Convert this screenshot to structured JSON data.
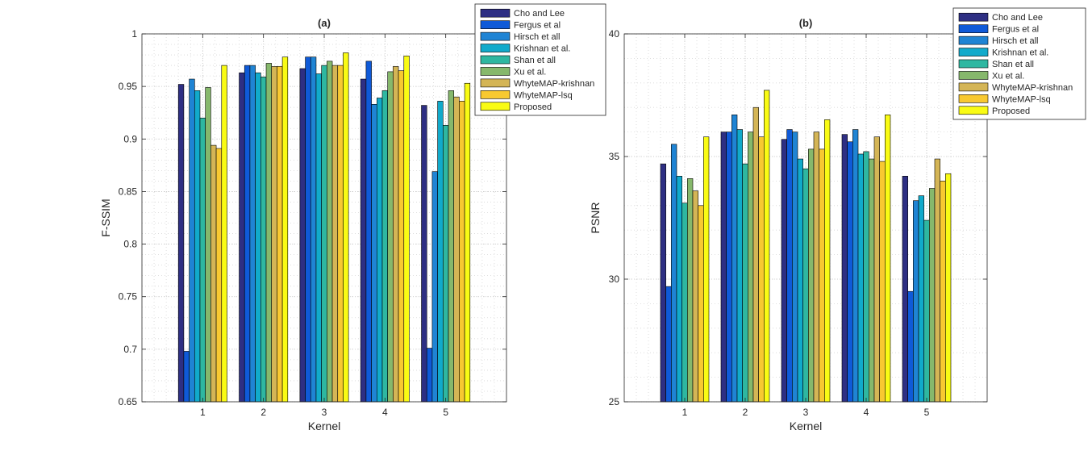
{
  "figure": {
    "background": "#ffffff"
  },
  "series_colors": [
    "#2e2f83",
    "#0f5ad8",
    "#1f84d4",
    "#11aacb",
    "#2eb7a1",
    "#86b86c",
    "#d4b556",
    "#f8c931",
    "#f9fb14"
  ],
  "chart_data": [
    {
      "type": "bar",
      "title": "(a)",
      "xlabel": "Kernel",
      "ylabel": "F-SSIM",
      "categories": [
        "1",
        "2",
        "3",
        "4",
        "5"
      ],
      "ylim": [
        0.65,
        1.0
      ],
      "xlim": [
        0,
        6
      ],
      "yticks": [
        0.65,
        0.7,
        0.75,
        0.8,
        0.85,
        0.9,
        0.95,
        1.0
      ],
      "ytick_labels": [
        "0.65",
        "0.7",
        "0.75",
        "0.8",
        "0.85",
        "0.9",
        "0.95",
        "1"
      ],
      "grid": true,
      "legend_position": "top-right",
      "series": [
        {
          "name": "Cho and Lee",
          "values": [
            0.952,
            0.963,
            0.967,
            0.957,
            0.932
          ]
        },
        {
          "name": "Fergus et al",
          "values": [
            0.698,
            0.97,
            0.978,
            0.974,
            0.701
          ]
        },
        {
          "name": "Hirsch et all",
          "values": [
            0.957,
            0.97,
            0.978,
            0.933,
            0.869
          ]
        },
        {
          "name": "Krishnan et al.",
          "values": [
            0.946,
            0.963,
            0.962,
            0.939,
            0.936
          ]
        },
        {
          "name": "Shan et all",
          "values": [
            0.92,
            0.959,
            0.97,
            0.946,
            0.913
          ]
        },
        {
          "name": "Xu et al.",
          "values": [
            0.949,
            0.972,
            0.974,
            0.964,
            0.946
          ]
        },
        {
          "name": "WhyteMAP-krishnan",
          "values": [
            0.894,
            0.969,
            0.97,
            0.969,
            0.94
          ]
        },
        {
          "name": "WhyteMAP-lsq",
          "values": [
            0.891,
            0.969,
            0.97,
            0.965,
            0.936
          ]
        },
        {
          "name": "Proposed",
          "values": [
            0.97,
            0.978,
            0.982,
            0.979,
            0.953
          ]
        }
      ]
    },
    {
      "type": "bar",
      "title": "(b)",
      "xlabel": "Kernel",
      "ylabel": "PSNR",
      "categories": [
        "1",
        "2",
        "3",
        "4",
        "5"
      ],
      "ylim": [
        25,
        40
      ],
      "xlim": [
        0,
        6
      ],
      "yticks": [
        25,
        30,
        35,
        40
      ],
      "ytick_labels": [
        "25",
        "30",
        "35",
        "40"
      ],
      "grid": true,
      "legend_position": "top-right",
      "series": [
        {
          "name": "Cho and Lee",
          "values": [
            34.7,
            36.0,
            35.7,
            35.9,
            34.2
          ]
        },
        {
          "name": "Fergus et al",
          "values": [
            29.7,
            36.0,
            36.1,
            35.6,
            29.5
          ]
        },
        {
          "name": "Hirsch et all",
          "values": [
            35.5,
            36.7,
            36.0,
            36.1,
            33.2
          ]
        },
        {
          "name": "Krishnan et al.",
          "values": [
            34.2,
            36.1,
            34.9,
            35.1,
            33.4
          ]
        },
        {
          "name": "Shan et all",
          "values": [
            33.1,
            34.7,
            34.5,
            35.2,
            32.4
          ]
        },
        {
          "name": "Xu et al.",
          "values": [
            34.1,
            36.0,
            35.3,
            34.9,
            33.7
          ]
        },
        {
          "name": "WhyteMAP-krishnan",
          "values": [
            33.6,
            37.0,
            36.0,
            35.8,
            34.9
          ]
        },
        {
          "name": "WhyteMAP-lsq",
          "values": [
            33.0,
            35.8,
            35.3,
            34.8,
            34.0
          ]
        },
        {
          "name": "Proposed",
          "values": [
            35.8,
            37.7,
            36.5,
            36.7,
            34.3
          ]
        }
      ]
    }
  ]
}
